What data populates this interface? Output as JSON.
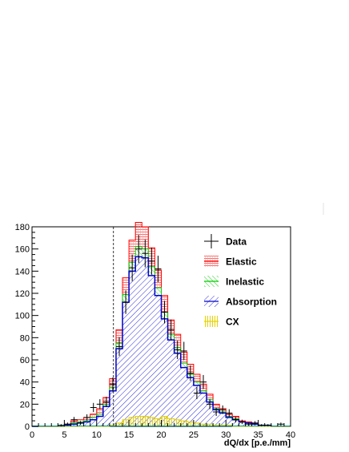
{
  "chart_data": {
    "type": "bar",
    "subtype": "stacked-histogram",
    "title": "",
    "xlabel": "dQ/dx [p.e./mm]",
    "ylabel": "",
    "xlim": [
      0,
      40
    ],
    "ylim": [
      0,
      180
    ],
    "x_ticks": [
      0,
      5,
      10,
      15,
      20,
      25,
      30,
      35,
      40
    ],
    "y_ticks": [
      0,
      20,
      40,
      60,
      80,
      100,
      120,
      140,
      160,
      180
    ],
    "bin_width": 1,
    "bin_lows": [
      0,
      1,
      2,
      3,
      4,
      5,
      6,
      7,
      8,
      9,
      10,
      11,
      12,
      13,
      14,
      15,
      16,
      17,
      18,
      19,
      20,
      21,
      22,
      23,
      24,
      25,
      26,
      27,
      28,
      29,
      30,
      31,
      32,
      33,
      34,
      35,
      36,
      37,
      38,
      39
    ],
    "cut_line": {
      "x": 12.6,
      "style": "dashed"
    },
    "legend_position": "top-right",
    "colors": {
      "Data": "#000000",
      "Elastic": "#ff0000",
      "Inelastic": "#00cc00",
      "Absorption": "#0000cc",
      "CX": "#e6d200"
    },
    "series": [
      {
        "name": "CX",
        "style": "hatched-yellow",
        "values": [
          0,
          0,
          0,
          0,
          0,
          0,
          0,
          0,
          0,
          0,
          0,
          0,
          1,
          3,
          6,
          8,
          9,
          9,
          8,
          7,
          9,
          7,
          6,
          5,
          4,
          3,
          2,
          2,
          1,
          1,
          1,
          0,
          0,
          0,
          0,
          0,
          0,
          0,
          0,
          0
        ]
      },
      {
        "name": "Absorption",
        "style": "hatched-blue",
        "values": [
          0,
          0,
          0,
          0,
          0,
          1,
          2,
          3,
          4,
          6,
          9,
          18,
          32,
          70,
          112,
          140,
          153,
          152,
          136,
          118,
          97,
          78,
          66,
          53,
          44,
          37,
          30,
          22,
          15,
          12,
          8,
          6,
          4,
          3,
          2,
          1,
          1,
          0,
          0,
          0
        ]
      },
      {
        "name": "Inelastic",
        "style": "hatched-green",
        "values": [
          0,
          0,
          0,
          0,
          0,
          0,
          1,
          1,
          1,
          2,
          2,
          2,
          3,
          5,
          7,
          8,
          9,
          8,
          8,
          7,
          6,
          5,
          5,
          4,
          3,
          3,
          2,
          2,
          1,
          1,
          1,
          1,
          0,
          0,
          0,
          0,
          0,
          0,
          0,
          0
        ]
      },
      {
        "name": "Elastic",
        "style": "hatched-red",
        "values": [
          0,
          0,
          0,
          0,
          0,
          1,
          2,
          2,
          3,
          3,
          5,
          6,
          8,
          12,
          15,
          20,
          22,
          20,
          17,
          16,
          15,
          13,
          12,
          10,
          9,
          7,
          6,
          5,
          4,
          3,
          2,
          2,
          1,
          1,
          1,
          0,
          0,
          0,
          0,
          0
        ]
      },
      {
        "name": "Data",
        "style": "points-with-errors",
        "x": [
          4.5,
          5.5,
          6.5,
          7.5,
          8.5,
          9.5,
          10.5,
          11.5,
          12.5,
          13.5,
          14.5,
          15.5,
          16.5,
          17.5,
          18.5,
          19.5,
          20.5,
          21.5,
          22.5,
          23.5,
          24.5,
          25.5,
          26.5,
          27.5,
          28.5,
          29.5,
          30.5,
          31.5,
          32.5,
          33.5,
          34.5,
          35.5,
          36.5,
          37.5,
          38.5
        ],
        "values": [
          1,
          2,
          6,
          3,
          8,
          17,
          20,
          22,
          38,
          72,
          112,
          143,
          160,
          156,
          149,
          142,
          103,
          87,
          69,
          68,
          48,
          30,
          40,
          20,
          13,
          15,
          12,
          6,
          4,
          2,
          3,
          1,
          1,
          0,
          2
        ]
      }
    ]
  }
}
